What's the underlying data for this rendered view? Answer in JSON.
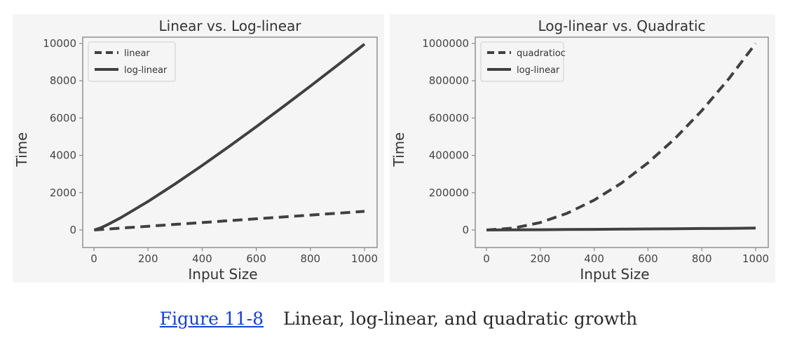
{
  "caption": {
    "link": "Figure 11-8",
    "text": "Linear, log-linear, and quadratic growth"
  },
  "colors": {
    "line": "#404040",
    "axis": "#8a8a8a",
    "panel_bg": "#f5f5f5",
    "link": "#1a3fcf"
  },
  "chart_data": [
    {
      "type": "line",
      "title": "Linear vs. Log-linear",
      "xlabel": "Input Size",
      "ylabel": "Time",
      "xlim": [
        0,
        1000
      ],
      "ylim": [
        0,
        10000
      ],
      "xticks": [
        0,
        200,
        400,
        600,
        800,
        1000
      ],
      "yticks": [
        0,
        2000,
        4000,
        6000,
        8000,
        10000
      ],
      "grid": false,
      "legend_position": "top-left",
      "series": [
        {
          "name": "linear",
          "style": "dashed",
          "x": [
            1,
            100,
            200,
            300,
            400,
            500,
            600,
            700,
            800,
            900,
            1000
          ],
          "y": [
            1,
            100,
            200,
            300,
            400,
            500,
            600,
            700,
            800,
            900,
            1000
          ]
        },
        {
          "name": "log-linear",
          "style": "solid",
          "x": [
            1,
            25,
            50,
            100,
            200,
            300,
            400,
            500,
            600,
            700,
            800,
            900,
            1000
          ],
          "y": [
            0,
            116,
            282,
            664,
            1529,
            2469,
            3458,
            4483,
            5538,
            6616,
            7715,
            8832,
            9966
          ]
        }
      ]
    },
    {
      "type": "line",
      "title": "Log-linear vs. Quadratic",
      "xlabel": "Input Size",
      "ylabel": "Time",
      "xlim": [
        0,
        1000
      ],
      "ylim": [
        0,
        1000000
      ],
      "xticks": [
        0,
        200,
        400,
        600,
        800,
        1000
      ],
      "yticks": [
        0,
        200000,
        400000,
        600000,
        800000,
        1000000
      ],
      "grid": false,
      "legend_position": "top-left",
      "series": [
        {
          "name": "quadratioc",
          "style": "dashed",
          "x": [
            0,
            100,
            200,
            300,
            400,
            500,
            600,
            700,
            800,
            900,
            1000
          ],
          "y": [
            0,
            10000,
            40000,
            90000,
            160000,
            250000,
            360000,
            490000,
            640000,
            810000,
            1000000
          ]
        },
        {
          "name": "log-linear",
          "style": "solid",
          "x": [
            1,
            100,
            200,
            300,
            400,
            500,
            600,
            700,
            800,
            900,
            1000
          ],
          "y": [
            0,
            664,
            1529,
            2469,
            3458,
            4483,
            5538,
            6616,
            7715,
            8832,
            9966
          ]
        }
      ]
    }
  ]
}
